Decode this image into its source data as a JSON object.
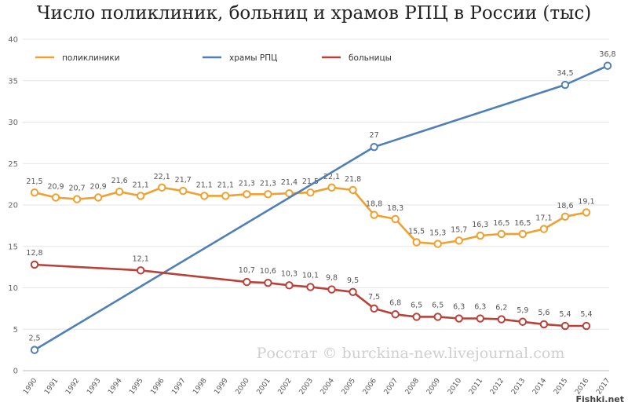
{
  "title": "Число поликлиник, больниц и храмов РПЦ в России (тыс)",
  "watermark": "Росстат © burckina-new.livejournal.com",
  "site_tag": "Fishki.net",
  "chart_data": {
    "type": "line",
    "title": "Число поликлиник, больниц и храмов РПЦ в России (тыс)",
    "xlabel": "",
    "ylabel": "",
    "ylim": [
      0,
      40
    ],
    "yticks": [
      0,
      5,
      10,
      15,
      20,
      25,
      30,
      35,
      40
    ],
    "x": [
      1990,
      1991,
      1992,
      1993,
      1994,
      1995,
      1996,
      1997,
      1998,
      1999,
      2000,
      2001,
      2002,
      2003,
      2004,
      2005,
      2006,
      2007,
      2008,
      2009,
      2010,
      2011,
      2012,
      2013,
      2014,
      2015,
      2016,
      2017
    ],
    "grid": "horizontal",
    "legend_position": "top",
    "series": [
      {
        "name": "поликлиники",
        "color": "#f0a030",
        "points": [
          [
            1990,
            21.5
          ],
          [
            1991,
            20.9
          ],
          [
            1992,
            20.7
          ],
          [
            1993,
            20.9
          ],
          [
            1994,
            21.6
          ],
          [
            1995,
            21.1
          ],
          [
            1996,
            22.1
          ],
          [
            1997,
            21.7
          ],
          [
            1998,
            21.1
          ],
          [
            1999,
            21.1
          ],
          [
            2000,
            21.3
          ],
          [
            2001,
            21.3
          ],
          [
            2002,
            21.4
          ],
          [
            2003,
            21.5
          ],
          [
            2004,
            22.1
          ],
          [
            2005,
            21.8
          ],
          [
            2006,
            18.8
          ],
          [
            2007,
            18.3
          ],
          [
            2008,
            15.5
          ],
          [
            2009,
            15.3
          ],
          [
            2010,
            15.7
          ],
          [
            2011,
            16.3
          ],
          [
            2012,
            16.5
          ],
          [
            2013,
            16.5
          ],
          [
            2014,
            17.1
          ],
          [
            2015,
            18.6
          ],
          [
            2016,
            19.1
          ]
        ],
        "labels": [
          "21,5",
          "20,9",
          "20,7",
          "20,9",
          "21,6",
          "21,1",
          "22,1",
          "21,7",
          "21,1",
          "21,1",
          "21,3",
          "21,3",
          "21,4",
          "21,5",
          "22,1",
          "21,8",
          "18,8",
          "18,3",
          "15,5",
          "15,3",
          "15,7",
          "16,3",
          "16,5",
          "16,5",
          "17,1",
          "18,6",
          "19,1"
        ]
      },
      {
        "name": "храмы РПЦ",
        "color": "#4f7fb8",
        "points": [
          [
            1990,
            2.5
          ],
          [
            2006,
            27
          ],
          [
            2015,
            34.5
          ],
          [
            2017,
            36.8
          ]
        ],
        "labels": [
          "2,5",
          "27",
          "34,5",
          "36,8"
        ]
      },
      {
        "name": "больницы",
        "color": "#b8413a",
        "points": [
          [
            1990,
            12.8
          ],
          [
            1995,
            12.1
          ],
          [
            2000,
            10.7
          ],
          [
            2001,
            10.6
          ],
          [
            2002,
            10.3
          ],
          [
            2003,
            10.1
          ],
          [
            2004,
            9.8
          ],
          [
            2005,
            9.5
          ],
          [
            2006,
            7.5
          ],
          [
            2007,
            6.8
          ],
          [
            2008,
            6.5
          ],
          [
            2009,
            6.5
          ],
          [
            2010,
            6.3
          ],
          [
            2011,
            6.3
          ],
          [
            2012,
            6.2
          ],
          [
            2013,
            5.9
          ],
          [
            2014,
            5.6
          ],
          [
            2015,
            5.4
          ],
          [
            2016,
            5.4
          ]
        ],
        "labels": [
          "12,8",
          "12,1",
          "10,7",
          "10,6",
          "10,3",
          "10,1",
          "9,8",
          "9,5",
          "7,5",
          "6,8",
          "6,5",
          "6,5",
          "6,3",
          "6,3",
          "6,2",
          "5,9",
          "5,6",
          "5,4",
          "5,4"
        ]
      }
    ]
  }
}
